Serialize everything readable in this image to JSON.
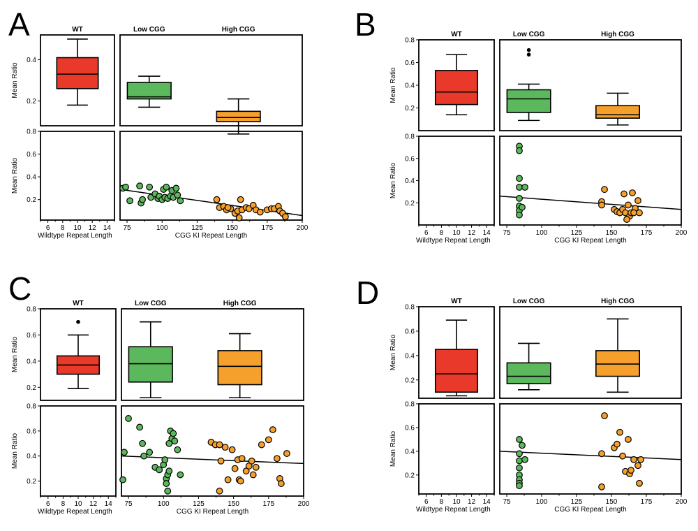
{
  "colors": {
    "wt": "#e8392b",
    "low": "#5cb85c",
    "high": "#f5a02c",
    "line": "#000000"
  },
  "chart_data": [
    {
      "id": "A",
      "panel_label": "A",
      "type": "box+scatter",
      "group_labels": {
        "wt": "WT",
        "low": "Low CGG",
        "high": "High CGG"
      },
      "ylabel": "Mean Ratio",
      "box_ylim": [
        0.08,
        0.52
      ],
      "box_yticks": [
        0.2,
        0.4
      ],
      "box_ytick_labels": [
        "0.2",
        "0.4"
      ],
      "boxes": {
        "wt": {
          "min": 0.18,
          "q1": 0.26,
          "median": 0.33,
          "q3": 0.41,
          "max": 0.5,
          "outliers": []
        },
        "low": {
          "min": 0.17,
          "q1": 0.21,
          "median": 0.22,
          "q3": 0.29,
          "max": 0.32,
          "outliers": []
        },
        "high": {
          "min": 0.04,
          "q1": 0.1,
          "median": 0.12,
          "q3": 0.15,
          "max": 0.21,
          "outliers": []
        }
      },
      "scatter_ylim": [
        0.02,
        0.8
      ],
      "scatter_yticks": [
        0.2,
        0.4,
        0.6,
        0.8
      ],
      "scatter_ytick_labels": [
        "0.2",
        "0.4",
        "0.6",
        "0.8"
      ],
      "wt_xlabel": "Wildtype Repeat Length",
      "wt_xlim": [
        5,
        15
      ],
      "wt_xticks": [
        6,
        8,
        10,
        12,
        14
      ],
      "wt_xtick_labels": [
        "6",
        "8",
        "10",
        "12",
        "14"
      ],
      "cgg_xlabel": "CGG KI Repeat Length",
      "cgg_xlim": [
        70,
        200
      ],
      "cgg_xticks": [
        75,
        100,
        125,
        150,
        175,
        200
      ],
      "cgg_xtick_labels": [
        "75",
        "100",
        "125",
        "150",
        "175",
        "200"
      ],
      "regression": {
        "x": [
          70,
          200
        ],
        "y": [
          0.29,
          0.06
        ]
      },
      "scatter_low": [
        [
          72,
          0.3
        ],
        [
          74,
          0.31
        ],
        [
          77,
          0.19
        ],
        [
          84,
          0.32
        ],
        [
          85,
          0.17
        ],
        [
          86,
          0.2
        ],
        [
          91,
          0.31
        ],
        [
          92,
          0.22
        ],
        [
          95,
          0.25
        ],
        [
          97,
          0.21
        ],
        [
          98,
          0.23
        ],
        [
          100,
          0.2
        ],
        [
          101,
          0.29
        ],
        [
          102,
          0.22
        ],
        [
          103,
          0.31
        ],
        [
          104,
          0.21
        ],
        [
          106,
          0.23
        ],
        [
          107,
          0.28
        ],
        [
          108,
          0.22
        ],
        [
          110,
          0.3
        ],
        [
          111,
          0.24
        ],
        [
          113,
          0.19
        ]
      ],
      "scatter_high": [
        [
          139,
          0.2
        ],
        [
          141,
          0.13
        ],
        [
          144,
          0.14
        ],
        [
          146,
          0.11
        ],
        [
          149,
          0.12
        ],
        [
          152,
          0.08
        ],
        [
          154,
          0.1
        ],
        [
          156,
          0.2
        ],
        [
          157,
          0.11
        ],
        [
          160,
          0.13
        ],
        [
          162,
          0.12
        ],
        [
          165,
          0.15
        ],
        [
          167,
          0.11
        ],
        [
          170,
          0.09
        ],
        [
          175,
          0.11
        ],
        [
          178,
          0.12
        ],
        [
          180,
          0.12
        ],
        [
          183,
          0.14
        ],
        [
          184,
          0.1
        ],
        [
          186,
          0.08
        ],
        [
          188,
          0.05
        ],
        [
          155,
          0.04
        ],
        [
          147,
          0.13
        ]
      ]
    },
    {
      "id": "B",
      "panel_label": "B",
      "type": "box+scatter",
      "group_labels": {
        "wt": "WT",
        "low": "Low CGG",
        "high": "High CGG"
      },
      "ylabel": "Mean Ratio",
      "box_ylim": [
        0.0,
        0.8
      ],
      "box_yticks": [
        0.2,
        0.4,
        0.6,
        0.8
      ],
      "box_ytick_labels": [
        "0.2",
        "0.4",
        "0.6",
        "0.8"
      ],
      "boxes": {
        "wt": {
          "min": 0.14,
          "q1": 0.23,
          "median": 0.34,
          "q3": 0.53,
          "max": 0.67,
          "outliers": []
        },
        "low": {
          "min": 0.09,
          "q1": 0.16,
          "median": 0.28,
          "q3": 0.36,
          "max": 0.41,
          "outliers": [
            0.67,
            0.71
          ]
        },
        "high": {
          "min": 0.05,
          "q1": 0.11,
          "median": 0.14,
          "q3": 0.22,
          "max": 0.33,
          "outliers": []
        }
      },
      "scatter_ylim": [
        0.0,
        0.8
      ],
      "scatter_yticks": [
        0.2,
        0.4,
        0.6,
        0.8
      ],
      "scatter_ytick_labels": [
        "0.2",
        "0.4",
        "0.6",
        "0.8"
      ],
      "wt_xlabel": "Wildtype Repeat Length",
      "wt_xlim": [
        5,
        15
      ],
      "wt_xticks": [
        6,
        8,
        10,
        12,
        14
      ],
      "wt_xtick_labels": [
        "6",
        "8",
        "10",
        "12",
        "14"
      ],
      "cgg_xlabel": "CGG KI Repeat Length",
      "cgg_xlim": [
        70,
        200
      ],
      "cgg_xticks": [
        75,
        100,
        125,
        150,
        175,
        200
      ],
      "cgg_xtick_labels": [
        "75",
        "100",
        "125",
        "150",
        "175",
        "200"
      ],
      "regression": {
        "x": [
          70,
          200
        ],
        "y": [
          0.26,
          0.14
        ]
      },
      "scatter_low": [
        [
          84,
          0.71
        ],
        [
          84,
          0.67
        ],
        [
          84,
          0.42
        ],
        [
          84,
          0.34
        ],
        [
          84,
          0.24
        ],
        [
          84,
          0.17
        ],
        [
          84,
          0.13
        ],
        [
          84,
          0.09
        ],
        [
          86,
          0.16
        ],
        [
          88,
          0.34
        ]
      ],
      "scatter_high": [
        [
          143,
          0.21
        ],
        [
          143,
          0.18
        ],
        [
          145,
          0.32
        ],
        [
          152,
          0.14
        ],
        [
          154,
          0.12
        ],
        [
          156,
          0.11
        ],
        [
          158,
          0.14
        ],
        [
          159,
          0.28
        ],
        [
          160,
          0.11
        ],
        [
          162,
          0.18
        ],
        [
          163,
          0.08
        ],
        [
          164,
          0.11
        ],
        [
          165,
          0.29
        ],
        [
          167,
          0.15
        ],
        [
          169,
          0.22
        ],
        [
          166,
          0.11
        ],
        [
          170,
          0.11
        ],
        [
          161,
          0.05
        ]
      ]
    },
    {
      "id": "C",
      "panel_label": "C",
      "type": "box+scatter",
      "group_labels": {
        "wt": "WT",
        "low": "Low CGG",
        "high": "High CGG"
      },
      "ylabel": "Mean Ratio",
      "box_ylim": [
        0.1,
        0.8
      ],
      "box_yticks": [
        0.2,
        0.4,
        0.6,
        0.8
      ],
      "box_ytick_labels": [
        "0.2",
        "0.4",
        "0.6",
        "0.8"
      ],
      "boxes": {
        "wt": {
          "min": 0.19,
          "q1": 0.3,
          "median": 0.37,
          "q3": 0.44,
          "max": 0.6,
          "outliers": [
            0.7
          ]
        },
        "low": {
          "min": 0.12,
          "q1": 0.24,
          "median": 0.38,
          "q3": 0.51,
          "max": 0.7,
          "outliers": []
        },
        "high": {
          "min": 0.12,
          "q1": 0.22,
          "median": 0.36,
          "q3": 0.48,
          "max": 0.61,
          "outliers": []
        }
      },
      "scatter_ylim": [
        0.08,
        0.8
      ],
      "scatter_yticks": [
        0.2,
        0.4,
        0.6,
        0.8
      ],
      "scatter_ytick_labels": [
        "0.2",
        "0.4",
        "0.6",
        "0.8"
      ],
      "wt_xlabel": "Wildtype Repeat Length",
      "wt_xlim": [
        5,
        15
      ],
      "wt_xticks": [
        6,
        8,
        10,
        12,
        14
      ],
      "wt_xtick_labels": [
        "6",
        "8",
        "10",
        "12",
        "14"
      ],
      "cgg_xlabel": "CGG KI Repeat Length",
      "cgg_xlim": [
        70,
        200
      ],
      "cgg_xticks": [
        75,
        100,
        125,
        150,
        175,
        200
      ],
      "cgg_xtick_labels": [
        "75",
        "100",
        "125",
        "150",
        "175",
        "200"
      ],
      "regression": {
        "x": [
          70,
          200
        ],
        "y": [
          0.4,
          0.34
        ]
      },
      "scatter_low": [
        [
          71,
          0.21
        ],
        [
          72,
          0.43
        ],
        [
          75,
          0.7
        ],
        [
          83,
          0.63
        ],
        [
          85,
          0.5
        ],
        [
          86,
          0.4
        ],
        [
          90,
          0.43
        ],
        [
          94,
          0.31
        ],
        [
          97,
          0.29
        ],
        [
          100,
          0.33
        ],
        [
          101,
          0.37
        ],
        [
          102,
          0.22
        ],
        [
          102,
          0.18
        ],
        [
          103,
          0.25
        ],
        [
          103,
          0.12
        ],
        [
          104,
          0.5
        ],
        [
          104,
          0.28
        ],
        [
          105,
          0.6
        ],
        [
          106,
          0.54
        ],
        [
          107,
          0.58
        ],
        [
          108,
          0.52
        ],
        [
          110,
          0.45
        ],
        [
          112,
          0.25
        ]
      ],
      "scatter_high": [
        [
          134,
          0.51
        ],
        [
          137,
          0.49
        ],
        [
          140,
          0.49
        ],
        [
          141,
          0.36
        ],
        [
          140,
          0.12
        ],
        [
          144,
          0.47
        ],
        [
          146,
          0.21
        ],
        [
          149,
          0.45
        ],
        [
          151,
          0.3
        ],
        [
          153,
          0.37
        ],
        [
          154,
          0.21
        ],
        [
          155,
          0.2
        ],
        [
          156,
          0.38
        ],
        [
          159,
          0.28
        ],
        [
          161,
          0.32
        ],
        [
          163,
          0.36
        ],
        [
          164,
          0.25
        ],
        [
          166,
          0.31
        ],
        [
          170,
          0.49
        ],
        [
          175,
          0.53
        ],
        [
          178,
          0.61
        ],
        [
          181,
          0.38
        ],
        [
          183,
          0.22
        ],
        [
          184,
          0.18
        ],
        [
          188,
          0.42
        ]
      ]
    },
    {
      "id": "D",
      "panel_label": "D",
      "type": "box+scatter",
      "group_labels": {
        "wt": "WT",
        "low": "Low CGG",
        "high": "High CGG"
      },
      "ylabel": "Mean Ratio",
      "box_ylim": [
        0.05,
        0.8
      ],
      "box_yticks": [
        0.2,
        0.4,
        0.6,
        0.8
      ],
      "box_ytick_labels": [
        "0.2",
        "0.4",
        "0.6",
        "0.8"
      ],
      "boxes": {
        "wt": {
          "min": 0.07,
          "q1": 0.1,
          "median": 0.25,
          "q3": 0.45,
          "max": 0.69,
          "outliers": []
        },
        "low": {
          "min": 0.12,
          "q1": 0.17,
          "median": 0.23,
          "q3": 0.34,
          "max": 0.5,
          "outliers": []
        },
        "high": {
          "min": 0.1,
          "q1": 0.23,
          "median": 0.33,
          "q3": 0.44,
          "max": 0.7,
          "outliers": []
        }
      },
      "scatter_ylim": [
        0.04,
        0.8
      ],
      "scatter_yticks": [
        0.2,
        0.4,
        0.6,
        0.8
      ],
      "scatter_ytick_labels": [
        "0.2",
        "0.4",
        "0.6",
        "0.8"
      ],
      "wt_xlabel": "Wildtype Repeat Length",
      "wt_xlim": [
        5,
        15
      ],
      "wt_xticks": [
        6,
        8,
        10,
        12,
        14
      ],
      "wt_xtick_labels": [
        "6",
        "8",
        "10",
        "12",
        "14"
      ],
      "cgg_xlabel": "CGG KI Repeat Length",
      "cgg_xlim": [
        70,
        200
      ],
      "cgg_xticks": [
        75,
        100,
        125,
        150,
        175,
        200
      ],
      "cgg_xtick_labels": [
        "75",
        "100",
        "125",
        "150",
        "175",
        "200"
      ],
      "regression": {
        "x": [
          70,
          200
        ],
        "y": [
          0.4,
          0.33
        ]
      },
      "scatter_low": [
        [
          84,
          0.5
        ],
        [
          84,
          0.38
        ],
        [
          84,
          0.32
        ],
        [
          84,
          0.26
        ],
        [
          84,
          0.2
        ],
        [
          84,
          0.16
        ],
        [
          84,
          0.13
        ],
        [
          84,
          0.11
        ],
        [
          86,
          0.45
        ],
        [
          88,
          0.33
        ]
      ],
      "scatter_high": [
        [
          143,
          0.38
        ],
        [
          143,
          0.1
        ],
        [
          145,
          0.7
        ],
        [
          152,
          0.43
        ],
        [
          154,
          0.46
        ],
        [
          156,
          0.56
        ],
        [
          158,
          0.36
        ],
        [
          160,
          0.23
        ],
        [
          162,
          0.5
        ],
        [
          163,
          0.21
        ],
        [
          164,
          0.24
        ],
        [
          166,
          0.33
        ],
        [
          169,
          0.28
        ],
        [
          170,
          0.13
        ],
        [
          171,
          0.33
        ]
      ]
    }
  ]
}
